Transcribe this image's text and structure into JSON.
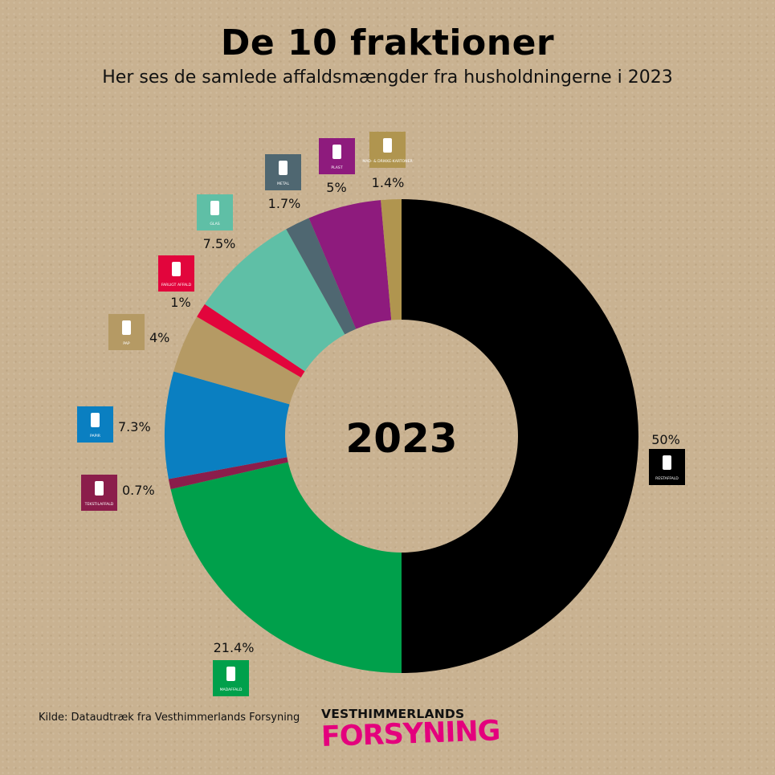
{
  "header": {
    "title": "De 10 fraktioner",
    "subtitle": "Her ses de samlede affaldsmængder fra husholdningerne i 2023"
  },
  "chart_data": {
    "type": "pie",
    "center_label": "2023",
    "series": [
      {
        "name": "RESTAFFALD",
        "value": 50,
        "label": "50%",
        "color": "#000000",
        "icon": "trash-bag-icon"
      },
      {
        "name": "MADAFFALD",
        "value": 21.4,
        "label": "21.4%",
        "color": "#00a04b",
        "icon": "apple-core-icon"
      },
      {
        "name": "TEKSTILAFFALD",
        "value": 0.7,
        "label": "0.7%",
        "color": "#8b1d4b",
        "icon": "tshirt-icon"
      },
      {
        "name": "PAPIR",
        "value": 7.3,
        "label": "7.3%",
        "color": "#0a7fc1",
        "icon": "paper-icon"
      },
      {
        "name": "PAP",
        "value": 4,
        "label": "4%",
        "color": "#b59a64",
        "icon": "box-icon"
      },
      {
        "name": "FARLIGT AFFALD",
        "value": 1,
        "label": "1%",
        "color": "#e2053c",
        "icon": "warning-icon"
      },
      {
        "name": "GLAS",
        "value": 7.5,
        "label": "7.5%",
        "color": "#5fbfa6",
        "icon": "bottle-icon"
      },
      {
        "name": "METAL",
        "value": 1.7,
        "label": "1.7%",
        "color": "#4f6771",
        "icon": "can-icon"
      },
      {
        "name": "PLAST",
        "value": 5,
        "label": "5%",
        "color": "#8e1b7d",
        "icon": "plastic-bottle-icon"
      },
      {
        "name": "MAD- & DRIKKE-KARTONER",
        "value": 1.4,
        "label": "1.4%",
        "color": "#b0954f",
        "icon": "carton-icon"
      }
    ]
  },
  "footer": {
    "source": "Kilde: Dataudtræk fra Vesthimmerlands Forsyning",
    "logo_top": "VESTHIMMERLANDS",
    "logo_bottom": "FORSYNING"
  }
}
